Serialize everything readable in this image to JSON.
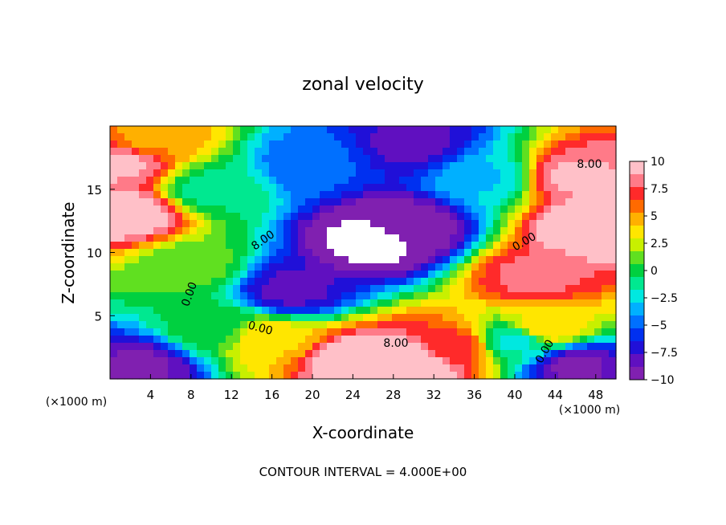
{
  "chart_data": {
    "type": "heatmap",
    "title": "zonal velocity",
    "xlabel": "X-coordinate",
    "ylabel": "Z-coordinate",
    "x_unit_left": "(×1000 m)",
    "x_unit_right": "(×1000 m)",
    "xlim": [
      0,
      50
    ],
    "ylim": [
      0,
      20
    ],
    "x_ticks": [
      "4",
      "8",
      "12",
      "16",
      "20",
      "24",
      "28",
      "32",
      "36",
      "40",
      "44",
      "48"
    ],
    "y_ticks": [
      "5",
      "10",
      "15"
    ],
    "colorbar": {
      "range": [
        -10,
        10
      ],
      "tick_labels": [
        "10",
        "7.5",
        "5",
        "2.5",
        "0",
        "−2.5",
        "−5",
        "−7.5",
        "−10"
      ],
      "colors": [
        "#ffc0c8",
        "#ff7a88",
        "#ff2a2a",
        "#ff6a00",
        "#ffb000",
        "#ffe600",
        "#c8f000",
        "#60e020",
        "#00d040",
        "#00e890",
        "#00e8e0",
        "#00b0ff",
        "#0070ff",
        "#0030f0",
        "#2010d8",
        "#6010c0",
        "#8020b0"
      ]
    },
    "contour_labels": [
      "8.00",
      "0.00",
      "0.00",
      "0.00",
      "8.00",
      "8.00",
      "0.00"
    ],
    "contour_interval_note": "CONTOUR INTERVAL = 4.000E+00",
    "field_features": [
      {
        "x": 26,
        "z": 11,
        "value": -12
      },
      {
        "x": 29,
        "z": 12,
        "value": -10
      },
      {
        "x": 18,
        "z": 7,
        "value": -8
      },
      {
        "x": 2,
        "z": 13,
        "value": 10
      },
      {
        "x": 1,
        "z": 17,
        "value": 9
      },
      {
        "x": 4,
        "z": 19,
        "value": 5
      },
      {
        "x": 48,
        "z": 12,
        "value": 11
      },
      {
        "x": 46,
        "z": 16,
        "value": 9
      },
      {
        "x": 42,
        "z": 8,
        "value": 8
      },
      {
        "x": 43,
        "z": 4,
        "value": 4
      },
      {
        "x": 24,
        "z": 1.5,
        "value": 10
      },
      {
        "x": 30,
        "z": 1.2,
        "value": 11
      },
      {
        "x": 34,
        "z": 2.5,
        "value": 7
      },
      {
        "x": 16,
        "z": 3,
        "value": 4
      },
      {
        "x": 8,
        "z": 9,
        "value": 1
      },
      {
        "x": 10,
        "z": 15,
        "value": -1
      },
      {
        "x": 20,
        "z": 17,
        "value": -5
      },
      {
        "x": 30,
        "z": 18.5,
        "value": -8
      },
      {
        "x": 37,
        "z": 16,
        "value": -3
      },
      {
        "x": 3,
        "z": 1,
        "value": -9
      },
      {
        "x": 46,
        "z": 1,
        "value": -9
      },
      {
        "x": 10,
        "z": 4,
        "value": 0
      },
      {
        "x": 40,
        "z": 3,
        "value": -2
      }
    ]
  }
}
